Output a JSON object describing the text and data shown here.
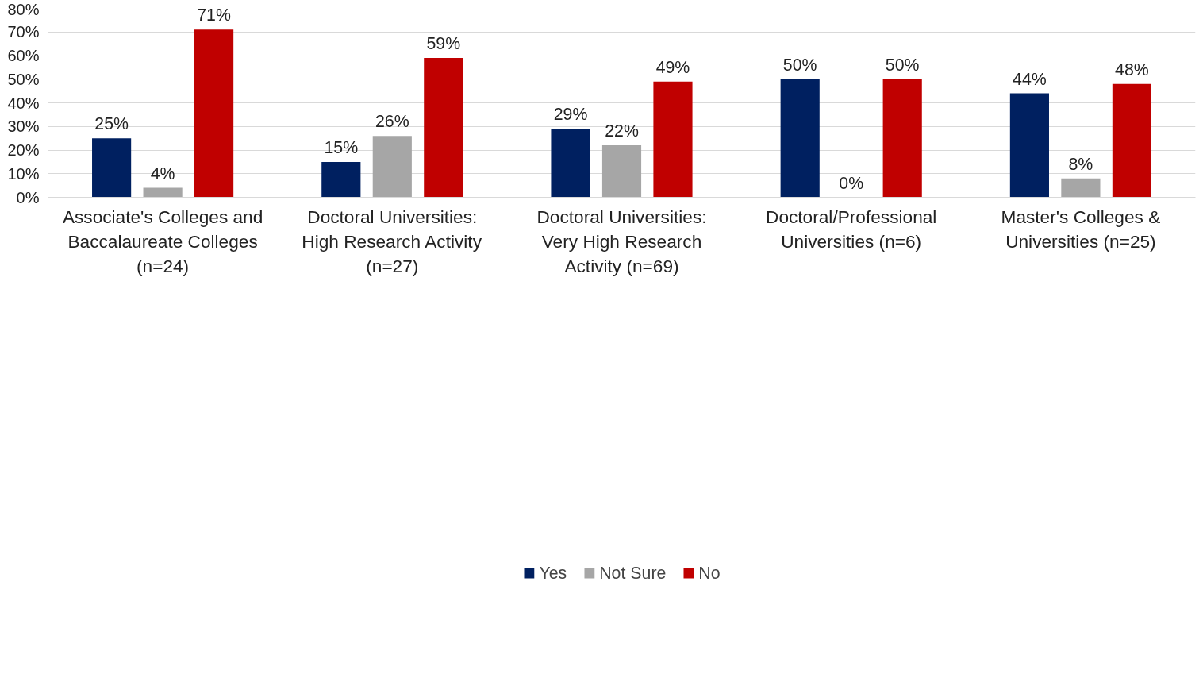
{
  "chart_data": {
    "type": "bar",
    "categories": [
      "Associate's Colleges and Baccalaureate Colleges (n=24)",
      "Doctoral Universities: High Research Activity (n=27)",
      "Doctoral Universities: Very High Research Activity (n=69)",
      "Doctoral/Professional Universities (n=6)",
      "Master's Colleges & Universities (n=25)"
    ],
    "series": [
      {
        "name": "Yes",
        "color": "#002060",
        "values": [
          25,
          15,
          29,
          50,
          44
        ],
        "value_labels": [
          "25%",
          "15%",
          "29%",
          "50%",
          "44%"
        ]
      },
      {
        "name": "Not Sure",
        "color": "#a6a6a6",
        "values": [
          4,
          26,
          22,
          0,
          8
        ],
        "value_labels": [
          "4%",
          "26%",
          "22%",
          "0%",
          "8%"
        ]
      },
      {
        "name": "No",
        "color": "#c00000",
        "values": [
          71,
          59,
          49,
          50,
          48
        ],
        "value_labels": [
          "71%",
          "59%",
          "49%",
          "50%",
          "48%"
        ]
      }
    ],
    "ylim": [
      0,
      80
    ],
    "yticks": [
      {
        "value": 0,
        "label": "0%"
      },
      {
        "value": 10,
        "label": "10%"
      },
      {
        "value": 20,
        "label": "20%"
      },
      {
        "value": 30,
        "label": "30%"
      },
      {
        "value": 40,
        "label": "40%"
      },
      {
        "value": 50,
        "label": "50%"
      },
      {
        "value": 60,
        "label": "60%"
      },
      {
        "value": 70,
        "label": "70%"
      },
      {
        "value": 80,
        "label": "80%"
      }
    ],
    "grid": "y",
    "legend": "bottom"
  }
}
